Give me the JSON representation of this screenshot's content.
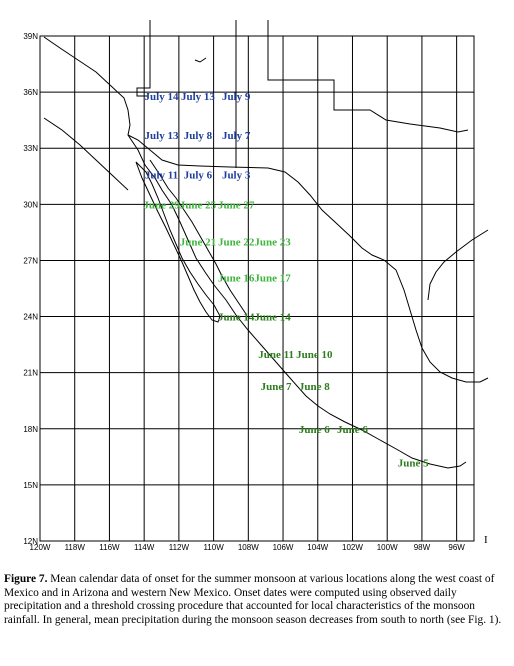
{
  "map": {
    "lat_labels": [
      "39N",
      "36N",
      "33N",
      "30N",
      "27N",
      "24N",
      "21N",
      "18N",
      "15N",
      "12N"
    ],
    "lon_labels": [
      "120W",
      "118W",
      "116W",
      "114W",
      "112W",
      "110W",
      "108W",
      "106W",
      "104W",
      "102W",
      "100W",
      "98W",
      "96W"
    ],
    "stray_mark": "I",
    "colors": {
      "july": "#1f3f9c",
      "june_north": "#3fb43f",
      "june_south": "#2e7d1e",
      "grid": "#000000",
      "coast": "#000000"
    },
    "july_labels": [
      {
        "text": "July 14",
        "lon": -113.0,
        "lat": 35.8
      },
      {
        "text": "July 13",
        "lon": -110.9,
        "lat": 35.8
      },
      {
        "text": "July 9",
        "lon": -108.7,
        "lat": 35.8
      },
      {
        "text": "July 13",
        "lon": -113.0,
        "lat": 33.7
      },
      {
        "text": "July 8",
        "lon": -110.9,
        "lat": 33.7
      },
      {
        "text": "July 7",
        "lon": -108.7,
        "lat": 33.7
      },
      {
        "text": "July 11",
        "lon": -113.0,
        "lat": 31.6
      },
      {
        "text": "July 6",
        "lon": -110.9,
        "lat": 31.6
      },
      {
        "text": "July 3",
        "lon": -108.7,
        "lat": 31.6
      }
    ],
    "june_north_labels": [
      {
        "text": "June 29",
        "lon": -113.0,
        "lat": 30.0
      },
      {
        "text": "June 25",
        "lon": -110.9,
        "lat": 30.0
      },
      {
        "text": "June 27",
        "lon": -108.7,
        "lat": 30.0
      },
      {
        "text": "June 21",
        "lon": -110.9,
        "lat": 28.0
      },
      {
        "text": "June 22",
        "lon": -108.7,
        "lat": 28.0
      },
      {
        "text": "June 23",
        "lon": -106.6,
        "lat": 28.0
      },
      {
        "text": "June 16",
        "lon": -108.7,
        "lat": 26.1
      },
      {
        "text": "June 17",
        "lon": -106.6,
        "lat": 26.1
      }
    ],
    "june_south_labels": [
      {
        "text": "June 14",
        "lon": -108.7,
        "lat": 24.0
      },
      {
        "text": "June 14",
        "lon": -106.6,
        "lat": 24.0
      },
      {
        "text": "June 11",
        "lon": -106.4,
        "lat": 22.0
      },
      {
        "text": "June 10",
        "lon": -104.2,
        "lat": 22.0
      },
      {
        "text": "June 7",
        "lon": -106.4,
        "lat": 20.3
      },
      {
        "text": "June 8",
        "lon": -104.2,
        "lat": 20.3
      },
      {
        "text": "June 6",
        "lon": -104.2,
        "lat": 18.0
      },
      {
        "text": "June 6",
        "lon": -102.0,
        "lat": 18.0
      },
      {
        "text": "June 5",
        "lon": -98.5,
        "lat": 16.2
      }
    ]
  },
  "caption": {
    "label": "Figure 7.",
    "text": " Mean calendar data of onset for the summer monsoon at various locations along the west coast of Mexico and in Arizona and western New Mexico.  Onset dates were computed using observed daily precipitation and a threshold crossing procedure that accounted for local characteristics of the monsoon rainfall.  In general, mean precipitation during the monsoon season decreases from south to north (see Fig. 1)."
  }
}
